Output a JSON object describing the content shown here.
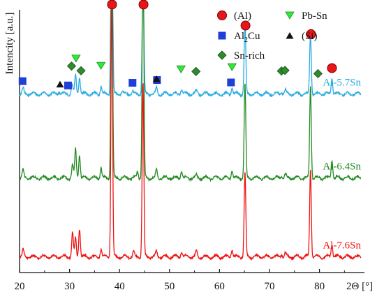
{
  "chart_data": {
    "type": "line",
    "xlabel": "2Θ [°]",
    "ylabel": "Intencity [a.u.]",
    "xlim": [
      20,
      89
    ],
    "x_ticks": [
      20,
      30,
      40,
      50,
      60,
      70,
      80
    ],
    "y_ticks_shown": false,
    "grid": false,
    "colors": {
      "Al-5.7Sn": "#29abe2",
      "Al-6.4Sn": "#228b22",
      "Al-7.6Sn": "#ee1111"
    },
    "series": [
      {
        "name": "Al-5.7Sn",
        "offset": 0.68,
        "peaks": [
          [
            20.7,
            0.02
          ],
          [
            27.9,
            0.01
          ],
          [
            30.5,
            0.035
          ],
          [
            31.2,
            0.07
          ],
          [
            32.0,
            0.065
          ],
          [
            36.3,
            0.03
          ],
          [
            38.45,
            1.0
          ],
          [
            40.5,
            0.01
          ],
          [
            42.6,
            0.01
          ],
          [
            44.7,
            0.45
          ],
          [
            47.4,
            0.025
          ],
          [
            52.4,
            0.02
          ],
          [
            55.4,
            0.01
          ],
          [
            62.5,
            0.025
          ],
          [
            65.1,
            0.27
          ],
          [
            72.4,
            0.01
          ],
          [
            73.2,
            0.015
          ],
          [
            78.2,
            0.23
          ],
          [
            82.5,
            0.06
          ]
        ]
      },
      {
        "name": "Al-6.4Sn",
        "offset": 0.36,
        "peaks": [
          [
            20.7,
            0.03
          ],
          [
            30.6,
            0.05
          ],
          [
            31.2,
            0.11
          ],
          [
            32.0,
            0.09
          ],
          [
            36.3,
            0.04
          ],
          [
            38.45,
            1.0
          ],
          [
            43.6,
            0.025
          ],
          [
            44.7,
            0.95
          ],
          [
            47.4,
            0.03
          ],
          [
            52.4,
            0.03
          ],
          [
            55.4,
            0.01
          ],
          [
            62.5,
            0.03
          ],
          [
            65.1,
            0.36
          ],
          [
            72.4,
            0.01
          ],
          [
            73.2,
            0.015
          ],
          [
            78.2,
            0.35
          ],
          [
            82.5,
            0.07
          ]
        ]
      },
      {
        "name": "Al-7.6Sn",
        "offset": 0.06,
        "peaks": [
          [
            20.7,
            0.025
          ],
          [
            30.6,
            0.09
          ],
          [
            31.2,
            0.07
          ],
          [
            32.0,
            0.11
          ],
          [
            36.3,
            0.03
          ],
          [
            38.45,
            1.0
          ],
          [
            42.8,
            0.02
          ],
          [
            44.7,
            0.66
          ],
          [
            47.4,
            0.02
          ],
          [
            52.4,
            0.02
          ],
          [
            55.4,
            0.02
          ],
          [
            62.5,
            0.03
          ],
          [
            65.1,
            0.32
          ],
          [
            72.4,
            0.01
          ],
          [
            73.2,
            0.015
          ],
          [
            78.2,
            0.33
          ],
          [
            82.5,
            0.05
          ]
        ]
      }
    ],
    "phases": [
      {
        "name": "(Al)",
        "marker": "circle",
        "color": "#e8161b",
        "positions": [
          38.5,
          44.8,
          65.2,
          78.3,
          82.5
        ]
      },
      {
        "name": "Al2Cu",
        "marker": "square",
        "color": "#1f3fd6",
        "positions": [
          20.6,
          29.7,
          42.6,
          47.5,
          62.3
        ]
      },
      {
        "name": "Sn-rich",
        "marker": "diamond",
        "color": "#2e8b2e",
        "positions": [
          30.4,
          32.3,
          55.3,
          72.4,
          73.1,
          79.7
        ]
      },
      {
        "name": "Pb-Sn",
        "marker": "triangle-down",
        "color": "#33e83a",
        "positions": [
          31.3,
          36.3,
          52.3,
          62.5
        ]
      },
      {
        "name": "(Si)",
        "marker": "triangle-up",
        "color": "#111111",
        "positions": [
          28.1,
          47.4
        ]
      }
    ],
    "legend_entries": [
      {
        "label": "(Al)",
        "marker": "circle"
      },
      {
        "label": "Pb-Sn",
        "marker": "triangle-down"
      },
      {
        "label_base": "Al",
        "label_sub": "2",
        "label_rest": "Cu",
        "marker": "square"
      },
      {
        "label": "(Si)",
        "marker": "triangle-up"
      },
      {
        "label": "Sn-rich",
        "marker": "diamond"
      }
    ],
    "legend_position": "top-right"
  }
}
